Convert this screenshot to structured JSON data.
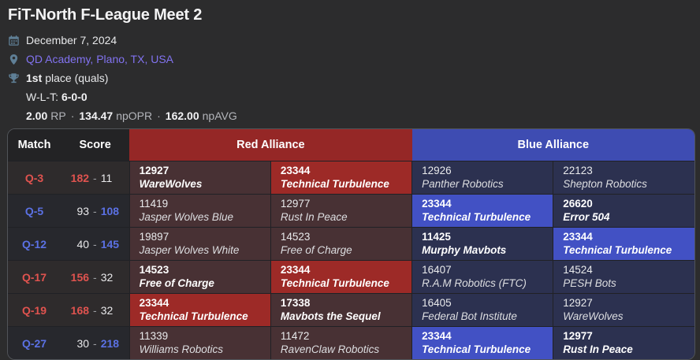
{
  "header": {
    "title": "FiT-North F-League Meet 2",
    "date": "December 7, 2024",
    "location": "QD Academy, Plano, TX, USA",
    "place_rank": "1st",
    "place_rest": "place (quals)",
    "wlt_label": "W-L-T:",
    "wlt_value": "6-0-0",
    "stat_separator": "·",
    "stats": [
      {
        "value": "2.00",
        "label": "RP"
      },
      {
        "value": "134.47",
        "label": "npOPR"
      },
      {
        "value": "162.00",
        "label": "npAVG"
      }
    ],
    "icons": [
      "calendar-icon",
      "location-pin-icon",
      "trophy-icon"
    ]
  },
  "colors": {
    "page_bg": "#2c2c2d",
    "link_purple": "#8273f1",
    "red_header": "#952726",
    "blue_header": "#3e4cb2",
    "red_muted_cell": "#483134",
    "blue_muted_cell": "#2c3150",
    "red_highlight_cell": "#9d2a27",
    "blue_highlight_cell": "#4251c4",
    "red_text": "#e0534f",
    "blue_text": "#5b71e4",
    "icon_slate": "#5f7f96"
  },
  "table": {
    "headers": {
      "match": "Match",
      "score": "Score",
      "red": "Red Alliance",
      "blue": "Blue Alliance"
    },
    "score_separator": "-",
    "rows": [
      {
        "match": "Q-3",
        "winner": "red",
        "red_score": "182",
        "blue_score": "11",
        "red": [
          {
            "number": "12927",
            "name": "WareWolves",
            "highlight": false
          },
          {
            "number": "23344",
            "name": "Technical Turbulence",
            "highlight": true
          }
        ],
        "blue": [
          {
            "number": "12926",
            "name": "Panther Robotics",
            "highlight": false
          },
          {
            "number": "22123",
            "name": "Shepton Robotics",
            "highlight": false
          }
        ]
      },
      {
        "match": "Q-5",
        "winner": "blue",
        "red_score": "93",
        "blue_score": "108",
        "red": [
          {
            "number": "11419",
            "name": "Jasper Wolves Blue",
            "highlight": false
          },
          {
            "number": "12977",
            "name": "Rust In Peace",
            "highlight": false
          }
        ],
        "blue": [
          {
            "number": "23344",
            "name": "Technical Turbulence",
            "highlight": true
          },
          {
            "number": "26620",
            "name": "Error 504",
            "highlight": false
          }
        ]
      },
      {
        "match": "Q-12",
        "winner": "blue",
        "red_score": "40",
        "blue_score": "145",
        "red": [
          {
            "number": "19897",
            "name": "Jasper Wolves White",
            "highlight": false
          },
          {
            "number": "14523",
            "name": "Free of Charge",
            "highlight": false
          }
        ],
        "blue": [
          {
            "number": "11425",
            "name": "Murphy Mavbots",
            "highlight": false
          },
          {
            "number": "23344",
            "name": "Technical Turbulence",
            "highlight": true
          }
        ]
      },
      {
        "match": "Q-17",
        "winner": "red",
        "red_score": "156",
        "blue_score": "32",
        "red": [
          {
            "number": "14523",
            "name": "Free of Charge",
            "highlight": false
          },
          {
            "number": "23344",
            "name": "Technical Turbulence",
            "highlight": true
          }
        ],
        "blue": [
          {
            "number": "16407",
            "name": "R.A.M Robotics (FTC)",
            "highlight": false
          },
          {
            "number": "14524",
            "name": "PESH Bots",
            "highlight": false
          }
        ]
      },
      {
        "match": "Q-19",
        "winner": "red",
        "red_score": "168",
        "blue_score": "32",
        "red": [
          {
            "number": "23344",
            "name": "Technical Turbulence",
            "highlight": true
          },
          {
            "number": "17338",
            "name": "Mavbots the Sequel",
            "highlight": false
          }
        ],
        "blue": [
          {
            "number": "16405",
            "name": "Federal Bot Institute",
            "highlight": false
          },
          {
            "number": "12927",
            "name": "WareWolves",
            "highlight": false
          }
        ]
      },
      {
        "match": "Q-27",
        "winner": "blue",
        "red_score": "30",
        "blue_score": "218",
        "red": [
          {
            "number": "11339",
            "name": "Williams Robotics",
            "highlight": false
          },
          {
            "number": "11472",
            "name": "RavenClaw Robotics",
            "highlight": false
          }
        ],
        "blue": [
          {
            "number": "23344",
            "name": "Technical Turbulence",
            "highlight": true
          },
          {
            "number": "12977",
            "name": "Rust In Peace",
            "highlight": false
          }
        ]
      }
    ]
  }
}
